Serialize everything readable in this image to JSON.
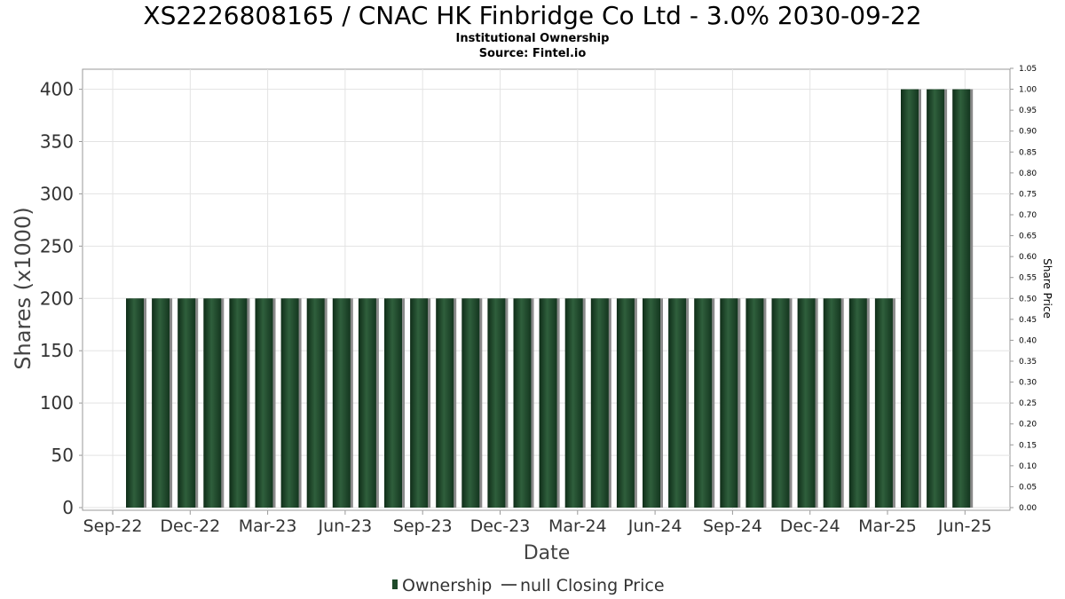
{
  "chart_data": {
    "type": "bar",
    "title": "XS2226808165 / CNAC HK Finbridge Co Ltd - 3.0% 2030-09-22",
    "subtitle": "Institutional Ownership",
    "source": "Source: Fintel.io",
    "xlabel": "Date",
    "ylabel": "Shares (x1000)",
    "y2label": "Share Price",
    "ylim": [
      0,
      420
    ],
    "y2lim": [
      0,
      1.05
    ],
    "yticks": [
      0,
      50,
      100,
      150,
      200,
      250,
      300,
      350,
      400
    ],
    "y2ticks": [
      "0.00",
      "0.05",
      "0.10",
      "0.15",
      "0.20",
      "0.25",
      "0.30",
      "0.35",
      "0.40",
      "0.45",
      "0.50",
      "0.55",
      "0.60",
      "0.65",
      "0.70",
      "0.75",
      "0.80",
      "0.85",
      "0.90",
      "0.95",
      "1.00",
      "1.05"
    ],
    "xticks": [
      "Sep-22",
      "Dec-22",
      "Mar-23",
      "Jun-23",
      "Sep-23",
      "Dec-23",
      "Mar-24",
      "Jun-24",
      "Sep-24",
      "Dec-24",
      "Mar-25",
      "Jun-25"
    ],
    "grid": true,
    "legend_position": "bottom",
    "series": [
      {
        "name": "Ownership",
        "color": "#1e4a2a",
        "values": [
          200,
          200,
          200,
          200,
          200,
          200,
          200,
          200,
          200,
          200,
          200,
          200,
          200,
          200,
          200,
          200,
          200,
          200,
          200,
          200,
          200,
          200,
          200,
          200,
          200,
          200,
          200,
          200,
          200,
          200,
          400,
          400,
          400
        ]
      },
      {
        "name": "null Closing Price",
        "color": "#555555",
        "values": []
      }
    ]
  }
}
